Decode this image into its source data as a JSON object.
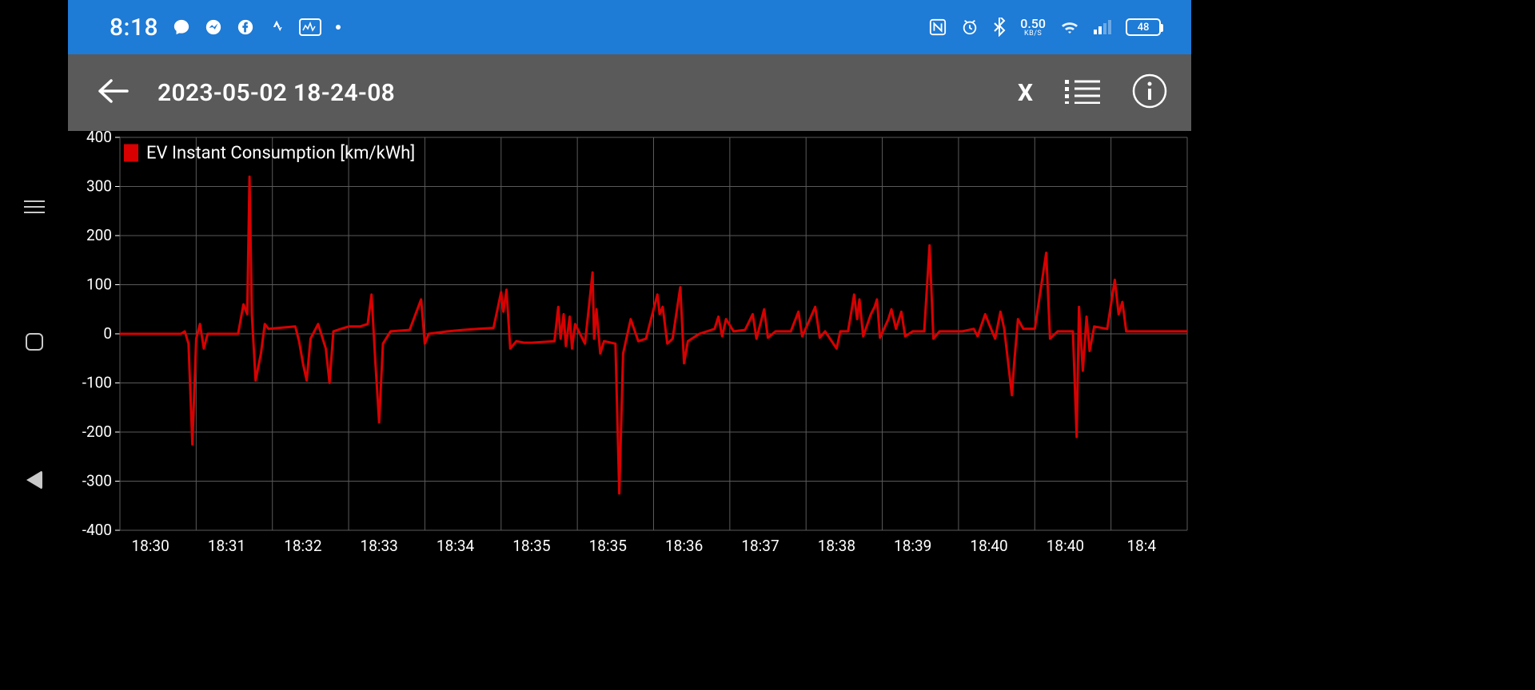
{
  "statusbar": {
    "time": "8:18",
    "data_rate": "0.50",
    "data_unit": "KB/S",
    "battery_pct": "48",
    "bg_color": "#1e7bd6",
    "fg_color": "#ffffff"
  },
  "appbar": {
    "title": "2023-05-02 18-24-08",
    "close_label": "X",
    "bg_color": "#5a5a5a",
    "fg_color": "#ffffff"
  },
  "chart": {
    "type": "line",
    "background_color": "#000000",
    "grid_color": "#5a5a5a",
    "axis_text_color": "#ffffff",
    "axis_fontsize": 19,
    "legend_fontsize": 22,
    "series_name": "EV Instant Consumption [km/kWh]",
    "series_color": "#d80000",
    "line_width": 3,
    "y": {
      "min": -400,
      "max": 400,
      "ticks": [
        -400,
        -300,
        -200,
        -100,
        0,
        100,
        200,
        300,
        400
      ],
      "tick_labels": [
        "-400",
        "-300",
        "-200",
        "-100",
        "0",
        "100",
        "200",
        "300"
      ]
    },
    "x": {
      "min": 0,
      "max": 14,
      "tick_positions": [
        0.4,
        1.4,
        2.4,
        3.4,
        4.4,
        5.4,
        6.4,
        7.4,
        8.4,
        9.4,
        10.4,
        11.4,
        12.4,
        13.4,
        14.1
      ],
      "tick_labels": [
        "18:30",
        "18:31",
        "18:32",
        "18:33",
        "18:34",
        "18:35",
        "18:35",
        "18:36",
        "18:37",
        "18:38",
        "18:39",
        "18:40",
        "18:40",
        "18:4"
      ],
      "minor_grid_positions": [
        0,
        1,
        2,
        3,
        4,
        5,
        6,
        7,
        8,
        9,
        10,
        11,
        12,
        13,
        14
      ]
    },
    "legend": {
      "x": 0.05,
      "y_value": 370
    },
    "data": [
      [
        0.0,
        0
      ],
      [
        0.6,
        0
      ],
      [
        0.8,
        0
      ],
      [
        0.85,
        5
      ],
      [
        0.9,
        -20
      ],
      [
        0.95,
        -225
      ],
      [
        1.0,
        -10
      ],
      [
        1.05,
        20
      ],
      [
        1.1,
        -30
      ],
      [
        1.15,
        0
      ],
      [
        1.55,
        0
      ],
      [
        1.62,
        60
      ],
      [
        1.67,
        40
      ],
      [
        1.7,
        320
      ],
      [
        1.73,
        40
      ],
      [
        1.78,
        -95
      ],
      [
        1.85,
        -40
      ],
      [
        1.9,
        20
      ],
      [
        1.95,
        10
      ],
      [
        2.3,
        15
      ],
      [
        2.35,
        -15
      ],
      [
        2.4,
        -60
      ],
      [
        2.45,
        -95
      ],
      [
        2.5,
        -10
      ],
      [
        2.6,
        20
      ],
      [
        2.7,
        -30
      ],
      [
        2.75,
        -100
      ],
      [
        2.8,
        5
      ],
      [
        2.9,
        10
      ],
      [
        3.0,
        15
      ],
      [
        3.15,
        15
      ],
      [
        3.25,
        20
      ],
      [
        3.3,
        80
      ],
      [
        3.35,
        -55
      ],
      [
        3.4,
        -180
      ],
      [
        3.45,
        -20
      ],
      [
        3.55,
        5
      ],
      [
        3.8,
        8
      ],
      [
        3.95,
        70
      ],
      [
        4.0,
        -20
      ],
      [
        4.05,
        0
      ],
      [
        4.3,
        5
      ],
      [
        4.5,
        8
      ],
      [
        4.7,
        10
      ],
      [
        4.9,
        12
      ],
      [
        5.0,
        85
      ],
      [
        5.03,
        45
      ],
      [
        5.07,
        90
      ],
      [
        5.12,
        -30
      ],
      [
        5.2,
        -15
      ],
      [
        5.3,
        -18
      ],
      [
        5.4,
        -18
      ],
      [
        5.7,
        -15
      ],
      [
        5.75,
        55
      ],
      [
        5.78,
        -10
      ],
      [
        5.82,
        40
      ],
      [
        5.85,
        -25
      ],
      [
        5.9,
        35
      ],
      [
        5.93,
        -30
      ],
      [
        5.97,
        20
      ],
      [
        6.1,
        -20
      ],
      [
        6.2,
        125
      ],
      [
        6.22,
        -10
      ],
      [
        6.25,
        50
      ],
      [
        6.3,
        -40
      ],
      [
        6.35,
        -15
      ],
      [
        6.5,
        -20
      ],
      [
        6.55,
        -325
      ],
      [
        6.6,
        -40
      ],
      [
        6.7,
        30
      ],
      [
        6.8,
        -15
      ],
      [
        6.9,
        -10
      ],
      [
        7.05,
        80
      ],
      [
        7.08,
        40
      ],
      [
        7.12,
        55
      ],
      [
        7.18,
        -20
      ],
      [
        7.25,
        -10
      ],
      [
        7.35,
        95
      ],
      [
        7.4,
        -60
      ],
      [
        7.45,
        -15
      ],
      [
        7.6,
        0
      ],
      [
        7.8,
        10
      ],
      [
        7.85,
        35
      ],
      [
        7.9,
        -5
      ],
      [
        7.95,
        30
      ],
      [
        8.05,
        5
      ],
      [
        8.2,
        8
      ],
      [
        8.3,
        40
      ],
      [
        8.35,
        -10
      ],
      [
        8.45,
        50
      ],
      [
        8.5,
        -8
      ],
      [
        8.6,
        5
      ],
      [
        8.8,
        5
      ],
      [
        8.9,
        45
      ],
      [
        8.95,
        -5
      ],
      [
        9.05,
        30
      ],
      [
        9.12,
        55
      ],
      [
        9.18,
        -8
      ],
      [
        9.25,
        5
      ],
      [
        9.4,
        -30
      ],
      [
        9.45,
        5
      ],
      [
        9.55,
        5
      ],
      [
        9.6,
        50
      ],
      [
        9.63,
        80
      ],
      [
        9.67,
        30
      ],
      [
        9.7,
        70
      ],
      [
        9.75,
        -5
      ],
      [
        9.85,
        40
      ],
      [
        9.9,
        55
      ],
      [
        9.93,
        70
      ],
      [
        9.97,
        -8
      ],
      [
        10.08,
        30
      ],
      [
        10.12,
        50
      ],
      [
        10.18,
        10
      ],
      [
        10.25,
        45
      ],
      [
        10.3,
        -5
      ],
      [
        10.4,
        5
      ],
      [
        10.55,
        5
      ],
      [
        10.62,
        180
      ],
      [
        10.67,
        -10
      ],
      [
        10.75,
        5
      ],
      [
        10.9,
        5
      ],
      [
        11.05,
        5
      ],
      [
        11.2,
        10
      ],
      [
        11.25,
        -5
      ],
      [
        11.35,
        40
      ],
      [
        11.4,
        20
      ],
      [
        11.48,
        -10
      ],
      [
        11.55,
        45
      ],
      [
        11.6,
        10
      ],
      [
        11.7,
        -125
      ],
      [
        11.73,
        -60
      ],
      [
        11.78,
        30
      ],
      [
        11.85,
        10
      ],
      [
        12.0,
        10
      ],
      [
        12.15,
        165
      ],
      [
        12.2,
        -10
      ],
      [
        12.3,
        5
      ],
      [
        12.5,
        5
      ],
      [
        12.55,
        -210
      ],
      [
        12.58,
        55
      ],
      [
        12.63,
        -75
      ],
      [
        12.68,
        35
      ],
      [
        12.72,
        -35
      ],
      [
        12.78,
        15
      ],
      [
        12.95,
        10
      ],
      [
        13.05,
        110
      ],
      [
        13.1,
        40
      ],
      [
        13.15,
        65
      ],
      [
        13.2,
        5
      ],
      [
        13.3,
        5
      ],
      [
        14.0,
        5
      ]
    ]
  }
}
